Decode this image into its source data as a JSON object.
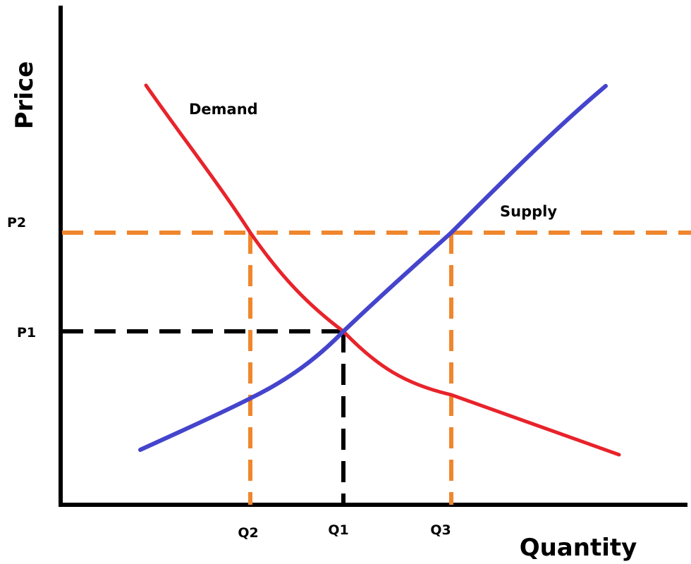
{
  "labels": {
    "y_axis": "Price",
    "x_axis": "Quantity",
    "demand": "Demand",
    "supply": "Supply",
    "p1": "P1",
    "p2": "P2",
    "q1": "Q1",
    "q2": "Q2",
    "q3": "Q3"
  },
  "colors": {
    "demand": "#e8232b",
    "supply": "#4444cc",
    "price_control": "#f0862d",
    "equilibrium": "#000000",
    "axis": "#000000"
  }
}
